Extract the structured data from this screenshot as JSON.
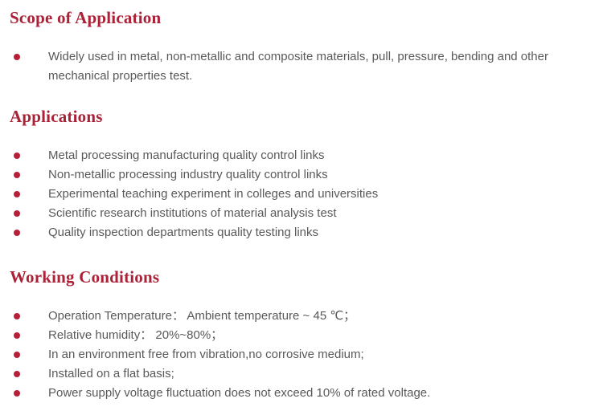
{
  "colors": {
    "heading": "#AA2138",
    "bullet": "#B81F37",
    "body_text": "#595959",
    "background": "#FFFFFF"
  },
  "sections": [
    {
      "title": "Scope of Application",
      "items": [
        "Widely used in metal, non-metallic and composite materials, pull, pressure, bending and other mechanical properties test."
      ]
    },
    {
      "title": "Applications",
      "items": [
        "Metal processing manufacturing quality control links",
        "Non-metallic processing industry quality control links",
        "Experimental teaching experiment in colleges and universities",
        "Scientific research institutions of material analysis test",
        "Quality inspection departments quality testing links"
      ]
    },
    {
      "title": "Working Conditions",
      "items": [
        "Operation Temperature：  Ambient temperature ~ 45 ℃；",
        "Relative humidity：  20%~80%；",
        "In an environment free from vibration,no corrosive medium;",
        "Installed on a flat basis;",
        "Power supply voltage fluctuation does not exceed 10% of rated voltage."
      ]
    }
  ]
}
